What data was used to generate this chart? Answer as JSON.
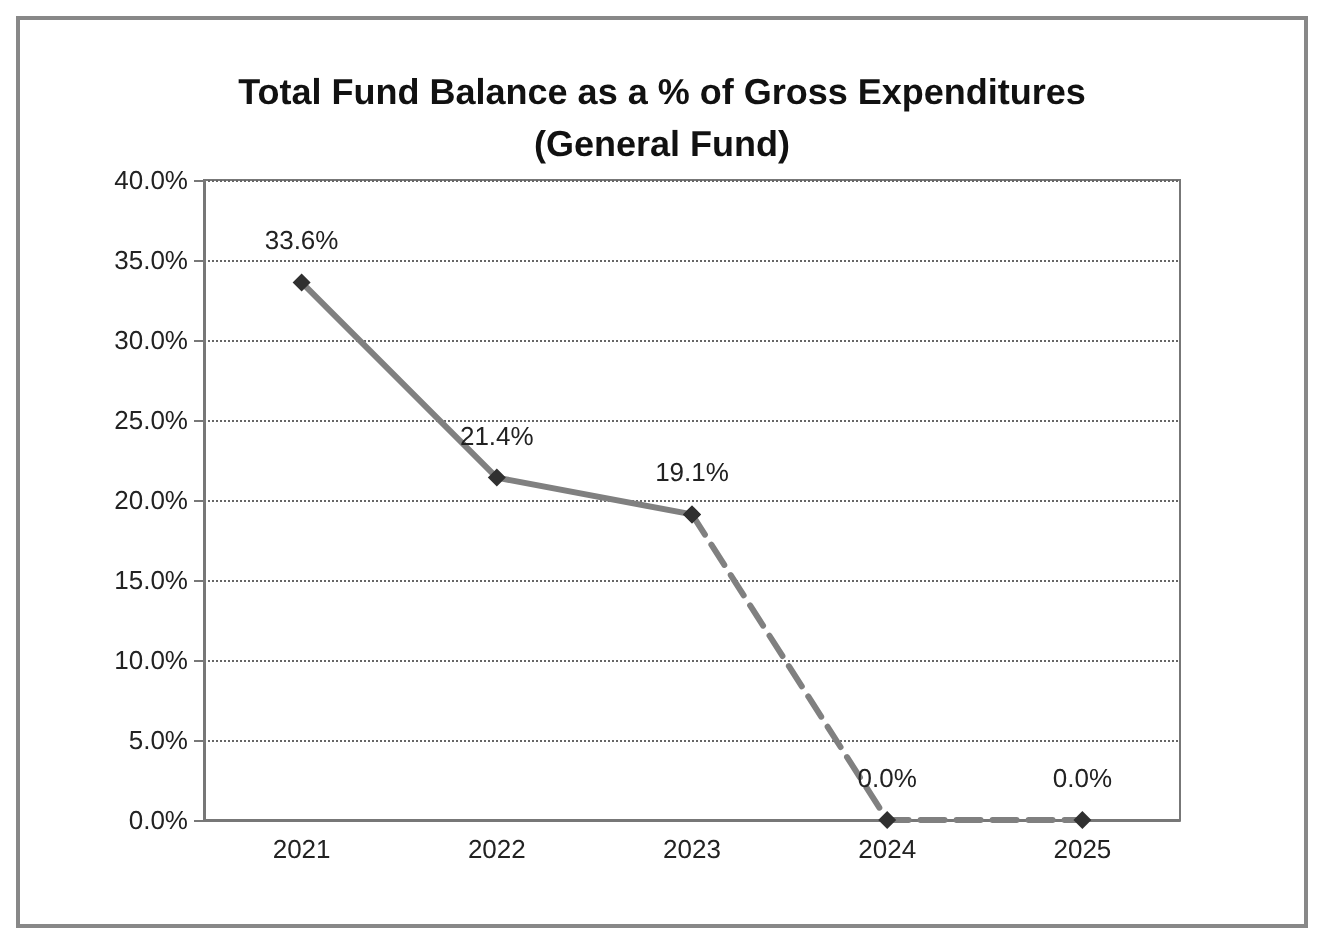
{
  "chart_data": {
    "type": "line",
    "title": "Total Fund Balance as a % of Gross Expenditures\n(General Fund)",
    "categories": [
      "2021",
      "2022",
      "2023",
      "2024",
      "2025"
    ],
    "series": [
      {
        "color": "#808080",
        "values": [
          33.6,
          21.4,
          19.1,
          null,
          null
        ],
        "line_style": "solid",
        "value_labels": [
          "33.6%",
          "21.4%",
          "19.1%",
          null,
          null
        ]
      },
      {
        "color": "#808080",
        "values": [
          null,
          null,
          19.1,
          0,
          0
        ],
        "line_style": "dashed",
        "value_labels": [
          null,
          null,
          null,
          "0.0%",
          "0.0%"
        ]
      }
    ],
    "ylim": [
      0,
      40
    ],
    "yticks": [
      {
        "value": 0,
        "label": "0.0%"
      },
      {
        "value": 5,
        "label": "5.0%"
      },
      {
        "value": 10,
        "label": "10.0%"
      },
      {
        "value": 15,
        "label": "15.0%"
      },
      {
        "value": 20,
        "label": "20.0%"
      },
      {
        "value": 25,
        "label": "25.0%"
      },
      {
        "value": 30,
        "label": "30.0%"
      },
      {
        "value": 35,
        "label": "35.0%"
      },
      {
        "value": 40,
        "label": "40.0%"
      }
    ],
    "grid": "y",
    "marker": "diamond"
  }
}
